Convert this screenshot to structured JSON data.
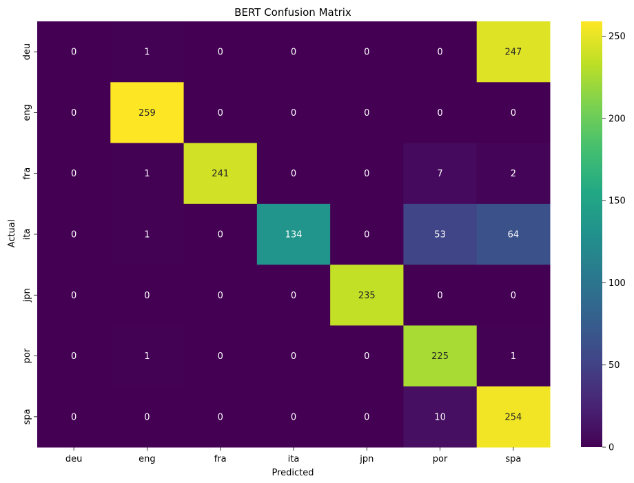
{
  "chart_data": {
    "type": "heatmap",
    "title": "BERT Confusion Matrix",
    "xlabel": "Predicted",
    "ylabel": "Actual",
    "x_categories": [
      "deu",
      "eng",
      "fra",
      "ita",
      "jpn",
      "por",
      "spa"
    ],
    "y_categories": [
      "deu",
      "eng",
      "fra",
      "ita",
      "jpn",
      "por",
      "spa"
    ],
    "values": [
      [
        0,
        1,
        0,
        0,
        0,
        0,
        247
      ],
      [
        0,
        259,
        0,
        0,
        0,
        0,
        0
      ],
      [
        0,
        1,
        241,
        0,
        0,
        7,
        2
      ],
      [
        0,
        1,
        0,
        134,
        0,
        53,
        64
      ],
      [
        0,
        0,
        0,
        0,
        235,
        0,
        0
      ],
      [
        0,
        1,
        0,
        0,
        0,
        225,
        1
      ],
      [
        0,
        0,
        0,
        0,
        0,
        10,
        254
      ]
    ],
    "colormap": "viridis",
    "color_range": [
      0,
      259
    ],
    "colorbar_ticks": [
      0,
      50,
      100,
      150,
      200,
      250
    ],
    "annotations": true
  }
}
